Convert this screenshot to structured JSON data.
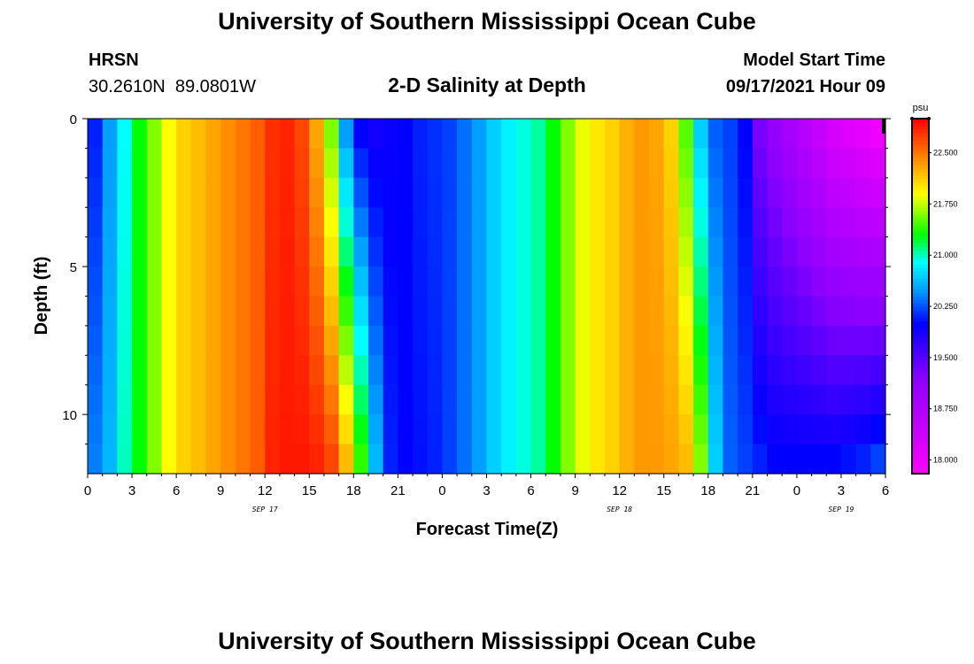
{
  "header": {
    "title": "University of Southern Mississippi Ocean Cube",
    "station": "HRSN",
    "coordinates": "30.2610N  89.0801W",
    "subtitle": "2-D Salinity at Depth",
    "model_start_label": "Model Start Time",
    "model_start_value": "09/17/2021 Hour 09"
  },
  "footer": {
    "title": "University of Southern Mississippi Ocean Cube"
  },
  "chart_data": {
    "type": "heatmap",
    "title": "2-D Salinity at Depth",
    "xlabel": "Forecast Time(Z)",
    "ylabel": "Depth (ft)",
    "x_range_hours": [
      0,
      54
    ],
    "y_range_ft": [
      0,
      12
    ],
    "x_step_hours": 1,
    "depth_rows": 12,
    "x_ticks": [
      {
        "hour": 0,
        "label": "0"
      },
      {
        "hour": 3,
        "label": "3"
      },
      {
        "hour": 6,
        "label": "6"
      },
      {
        "hour": 9,
        "label": "9"
      },
      {
        "hour": 12,
        "label": "12"
      },
      {
        "hour": 15,
        "label": "15"
      },
      {
        "hour": 18,
        "label": "18"
      },
      {
        "hour": 21,
        "label": "21"
      },
      {
        "hour": 24,
        "label": "0"
      },
      {
        "hour": 27,
        "label": "3"
      },
      {
        "hour": 30,
        "label": "6"
      },
      {
        "hour": 33,
        "label": "9"
      },
      {
        "hour": 36,
        "label": "12"
      },
      {
        "hour": 39,
        "label": "15"
      },
      {
        "hour": 42,
        "label": "18"
      },
      {
        "hour": 45,
        "label": "21"
      },
      {
        "hour": 48,
        "label": "0"
      },
      {
        "hour": 51,
        "label": "3"
      },
      {
        "hour": 54,
        "label": "6"
      }
    ],
    "date_labels": [
      {
        "hour": 12,
        "label": "SEP 17"
      },
      {
        "hour": 36,
        "label": "SEP 18"
      },
      {
        "hour": 51,
        "label": "SEP 19"
      }
    ],
    "y_ticks": [
      {
        "depth": 0,
        "label": "0"
      },
      {
        "depth": 5,
        "label": "5"
      },
      {
        "depth": 10,
        "label": "10"
      }
    ],
    "colorbar": {
      "unit": "psu",
      "min": 17.8,
      "max": 23.0,
      "ticks": [
        {
          "value": 18.0,
          "label": "18.000"
        },
        {
          "value": 18.75,
          "label": "18.750"
        },
        {
          "value": 19.5,
          "label": "19.500"
        },
        {
          "value": 20.25,
          "label": "20.250"
        },
        {
          "value": 21.0,
          "label": "21.000"
        },
        {
          "value": 21.75,
          "label": "21.750"
        },
        {
          "value": 22.5,
          "label": "22.500"
        }
      ],
      "color_stops": [
        {
          "value": 17.8,
          "color": "#ff00ff"
        },
        {
          "value": 19.2,
          "color": "#8c00ff"
        },
        {
          "value": 20.0,
          "color": "#0000ff"
        },
        {
          "value": 20.5,
          "color": "#00a0ff"
        },
        {
          "value": 20.9,
          "color": "#00ffff"
        },
        {
          "value": 21.3,
          "color": "#00ff00"
        },
        {
          "value": 21.9,
          "color": "#ffff00"
        },
        {
          "value": 22.3,
          "color": "#ffa500"
        },
        {
          "value": 23.0,
          "color": "#ff0000"
        }
      ]
    },
    "surface_salinity_psu": [
      20.1,
      20.5,
      20.9,
      21.3,
      21.6,
      21.9,
      22.1,
      22.2,
      22.3,
      22.4,
      22.5,
      22.6,
      22.8,
      22.85,
      22.7,
      22.3,
      21.6,
      20.5,
      20.0,
      19.9,
      19.95,
      20.0,
      20.1,
      20.15,
      20.2,
      20.35,
      20.5,
      20.7,
      20.85,
      20.95,
      21.05,
      21.3,
      21.6,
      21.85,
      22.0,
      22.1,
      22.25,
      22.35,
      22.3,
      22.1,
      21.5,
      20.7,
      20.3,
      20.2,
      20.0,
      19.3,
      19.1,
      18.9,
      18.7,
      18.5,
      18.3,
      18.2,
      18.1,
      18.0
    ],
    "bottom_salinity_psu": [
      20.4,
      20.6,
      21.0,
      21.3,
      21.6,
      21.9,
      22.1,
      22.2,
      22.3,
      22.4,
      22.5,
      22.6,
      22.85,
      22.9,
      22.9,
      22.85,
      22.7,
      22.2,
      21.4,
      20.6,
      20.1,
      20.0,
      20.05,
      20.1,
      20.2,
      20.35,
      20.5,
      20.7,
      20.85,
      20.95,
      21.05,
      21.3,
      21.6,
      21.85,
      22.0,
      22.1,
      22.25,
      22.35,
      22.35,
      22.3,
      22.2,
      21.6,
      20.7,
      20.3,
      20.2,
      20.1,
      20.0,
      20.0,
      20.0,
      20.0,
      20.0,
      20.05,
      20.1,
      20.2
    ],
    "deep_front_delay_hours": [
      4,
      3
    ]
  }
}
